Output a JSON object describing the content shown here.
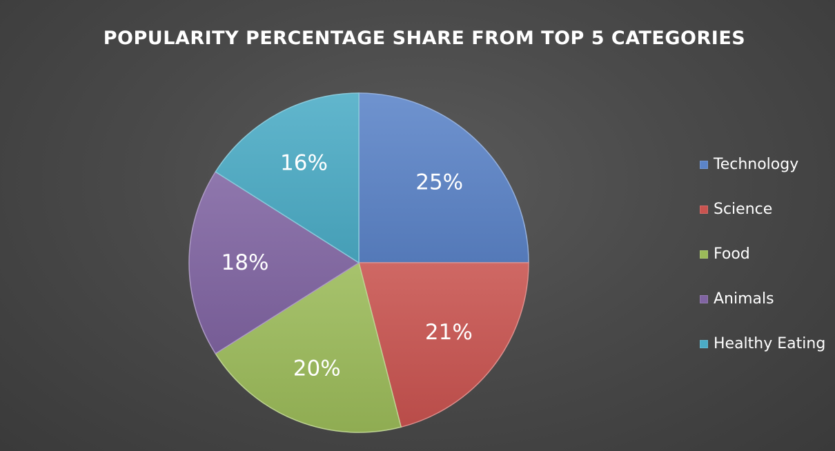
{
  "chart_data": {
    "type": "pie",
    "title": "POPULARITY PERCENTAGE SHARE FROM TOP 5 CATEGORIES",
    "categories": [
      "Technology",
      "Science",
      "Food",
      "Animals",
      "Healthy Eating"
    ],
    "values": [
      25,
      21,
      20,
      18,
      16
    ],
    "data_labels": [
      "25%",
      "21%",
      "20%",
      "18%",
      "16%"
    ],
    "colors": [
      "#5b84c8",
      "#c9534f",
      "#9bbb59",
      "#8064a2",
      "#4bacc6"
    ],
    "legend_position": "right",
    "start_angle": "12 o'clock",
    "direction": "clockwise"
  }
}
